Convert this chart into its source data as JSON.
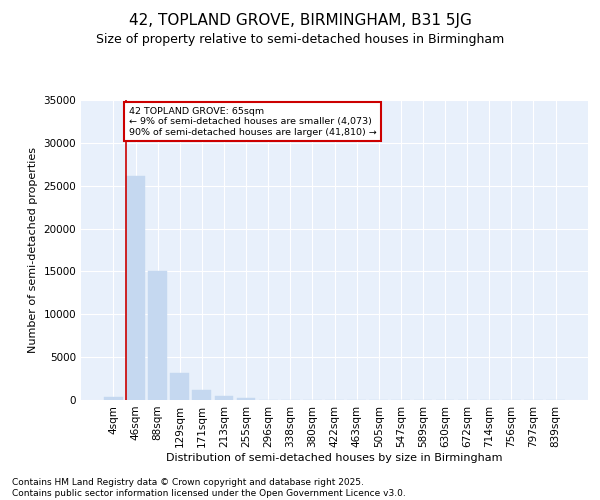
{
  "title1": "42, TOPLAND GROVE, BIRMINGHAM, B31 5JG",
  "title2": "Size of property relative to semi-detached houses in Birmingham",
  "xlabel": "Distribution of semi-detached houses by size in Birmingham",
  "ylabel": "Number of semi-detached properties",
  "bar_labels": [
    "4sqm",
    "46sqm",
    "88sqm",
    "129sqm",
    "171sqm",
    "213sqm",
    "255sqm",
    "296sqm",
    "338sqm",
    "380sqm",
    "422sqm",
    "463sqm",
    "505sqm",
    "547sqm",
    "589sqm",
    "630sqm",
    "672sqm",
    "714sqm",
    "756sqm",
    "797sqm",
    "839sqm"
  ],
  "bar_values": [
    350,
    26100,
    15100,
    3200,
    1200,
    450,
    200,
    0,
    0,
    0,
    0,
    0,
    0,
    0,
    0,
    0,
    0,
    0,
    0,
    0,
    0
  ],
  "bar_color": "#c5d8f0",
  "bar_edgecolor": "#c5d8f0",
  "vline_color": "#cc0000",
  "annotation_text": "42 TOPLAND GROVE: 65sqm\n← 9% of semi-detached houses are smaller (4,073)\n90% of semi-detached houses are larger (41,810) →",
  "annotation_box_color": "#cc0000",
  "ylim": [
    0,
    35000
  ],
  "yticks": [
    0,
    5000,
    10000,
    15000,
    20000,
    25000,
    30000,
    35000
  ],
  "background_color": "#e8f0fb",
  "grid_color": "#ffffff",
  "footer_text": "Contains HM Land Registry data © Crown copyright and database right 2025.\nContains public sector information licensed under the Open Government Licence v3.0.",
  "title_fontsize": 11,
  "subtitle_fontsize": 9,
  "axis_label_fontsize": 8,
  "tick_fontsize": 7.5,
  "footer_fontsize": 6.5
}
